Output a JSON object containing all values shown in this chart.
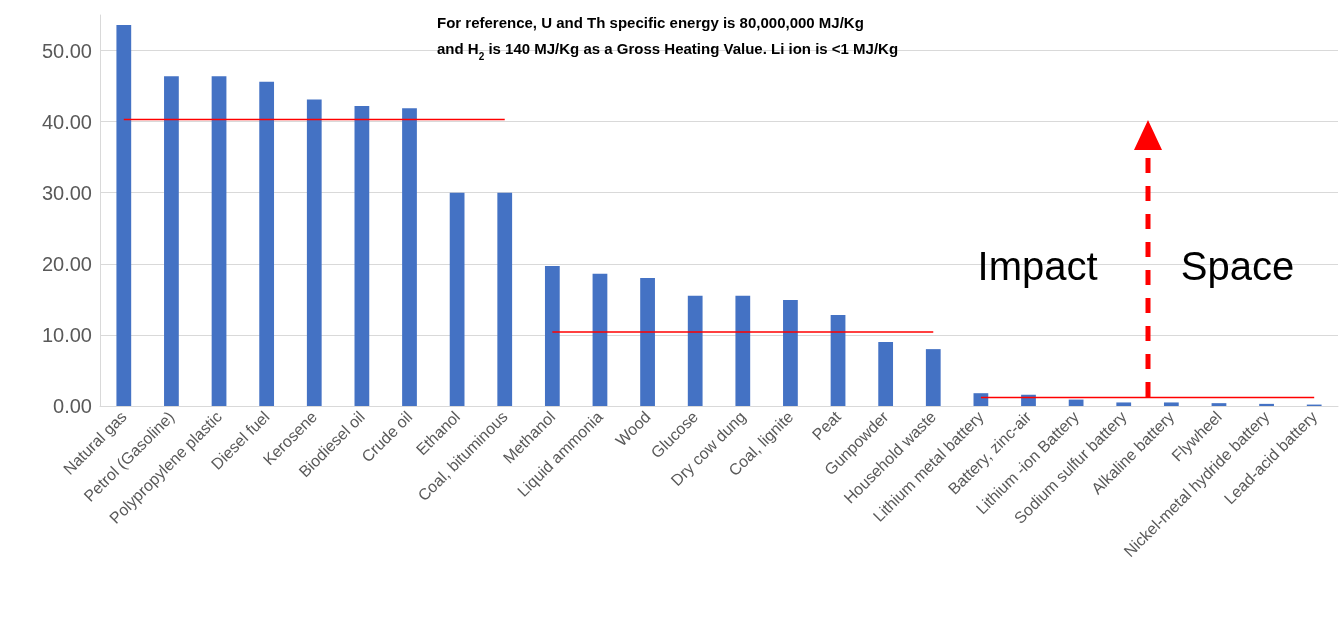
{
  "chart_data": {
    "type": "bar",
    "title": "For reference, U and Th specific energy is 80,000,000 MJ/Kg\nand H$_{2}$ is 140 MJ/Kg as a Gross Heating Value. Li ion is <1 MJ/Kg",
    "categories": [
      "Natural gas",
      "Petrol (Gasoline)",
      "Polypropylene plastic",
      "Diesel fuel",
      "Kerosene",
      "Biodiesel oil",
      "Crude oil",
      "Ethanol",
      "Coal, bituminous",
      "Methanol",
      "Liquid ammonia",
      "Wood",
      "Glucose",
      "Dry cow dung",
      "Coal, lignite",
      "Peat",
      "Gunpowder",
      "Household waste",
      "Lithium metal battery",
      "Battery, zinc-air",
      "Lithium -ion Battery",
      "Sodium sulfur battery",
      "Alkaline battery",
      "Flywheel",
      "Nickel-metal hydride battery",
      "Lead-acid battery"
    ],
    "series": [
      {
        "color": "#4472c4",
        "values": [
          53.6,
          46.4,
          46.4,
          45.6,
          43.1,
          42.2,
          41.9,
          30.0,
          30.0,
          19.7,
          18.6,
          18.0,
          15.5,
          15.5,
          14.9,
          12.8,
          9.0,
          8.0,
          1.8,
          1.6,
          0.9,
          0.5,
          0.5,
          0.4,
          0.3,
          0.2
        ]
      },
      {
        "type": "line",
        "color": "#ff0000",
        "values": [
          40.3,
          40.3,
          40.3,
          40.3,
          40.3,
          40.3,
          40.3,
          40.3,
          40.3,
          null,
          null,
          null,
          null,
          null,
          null,
          null,
          null,
          null,
          null,
          null,
          null,
          null,
          null,
          null,
          null,
          null
        ]
      },
      {
        "type": "line",
        "color": "#ff0000",
        "values": [
          null,
          null,
          null,
          null,
          null,
          null,
          null,
          null,
          null,
          10.4,
          10.4,
          10.4,
          10.4,
          10.4,
          10.4,
          10.4,
          10.4,
          10.4,
          null,
          null,
          null,
          null,
          null,
          null,
          null,
          null
        ]
      },
      {
        "type": "line",
        "color": "#ff0000",
        "values": [
          null,
          null,
          null,
          null,
          null,
          null,
          null,
          null,
          null,
          null,
          null,
          null,
          null,
          null,
          null,
          null,
          null,
          null,
          1.2,
          1.2,
          1.2,
          1.2,
          1.2,
          1.2,
          1.2,
          1.2
        ]
      }
    ],
    "annotations": [
      "Impact",
      "Space"
    ],
    "ylim": [
      0,
      55
    ],
    "yticks": [
      {
        "value": 0,
        "label": "0.00"
      },
      {
        "value": 10,
        "label": "10.00"
      },
      {
        "value": 20,
        "label": "20.00"
      },
      {
        "value": 30,
        "label": "30.00"
      },
      {
        "value": 40,
        "label": "40.00"
      },
      {
        "value": 50,
        "label": "50.00"
      }
    ],
    "grid": "y",
    "marker": "none"
  }
}
